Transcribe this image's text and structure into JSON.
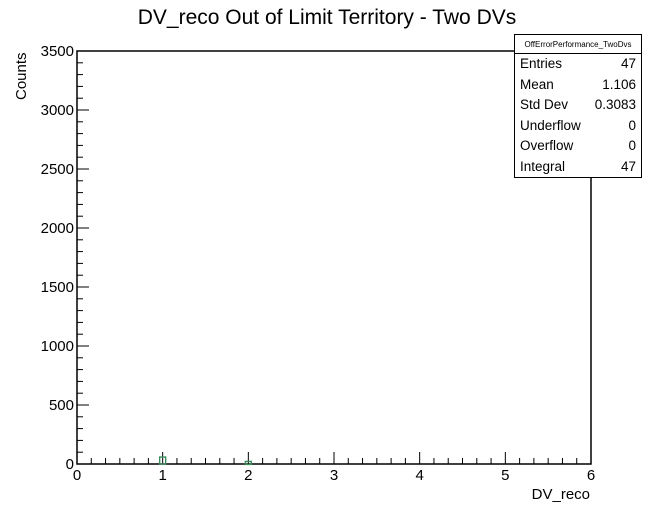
{
  "chart_data": {
    "type": "bar",
    "title": "DV_reco Out of Limit Territory - Two DVs",
    "xlabel": "DV_reco",
    "ylabel": "Counts",
    "xlim": [
      0,
      6
    ],
    "ylim": [
      0,
      3500
    ],
    "x_ticks": [
      "0",
      "1",
      "2",
      "3",
      "4",
      "5",
      "6"
    ],
    "y_ticks": [
      "0",
      "500",
      "1000",
      "1500",
      "2000",
      "2500",
      "3000",
      "3500"
    ],
    "bins": [
      {
        "x": 1.0,
        "value": 42
      },
      {
        "x": 2.0,
        "value": 5
      }
    ],
    "marker_color": "#3a8c5c"
  },
  "stats": {
    "name": "OffErrorPerformance_TwoDvs",
    "rows": [
      {
        "label": "Entries",
        "value": "47"
      },
      {
        "label": "Mean",
        "value": "1.106"
      },
      {
        "label": "Std Dev",
        "value": "0.3083"
      },
      {
        "label": "Underflow",
        "value": "0"
      },
      {
        "label": "Overflow",
        "value": "0"
      },
      {
        "label": "Integral",
        "value": "47"
      }
    ]
  }
}
